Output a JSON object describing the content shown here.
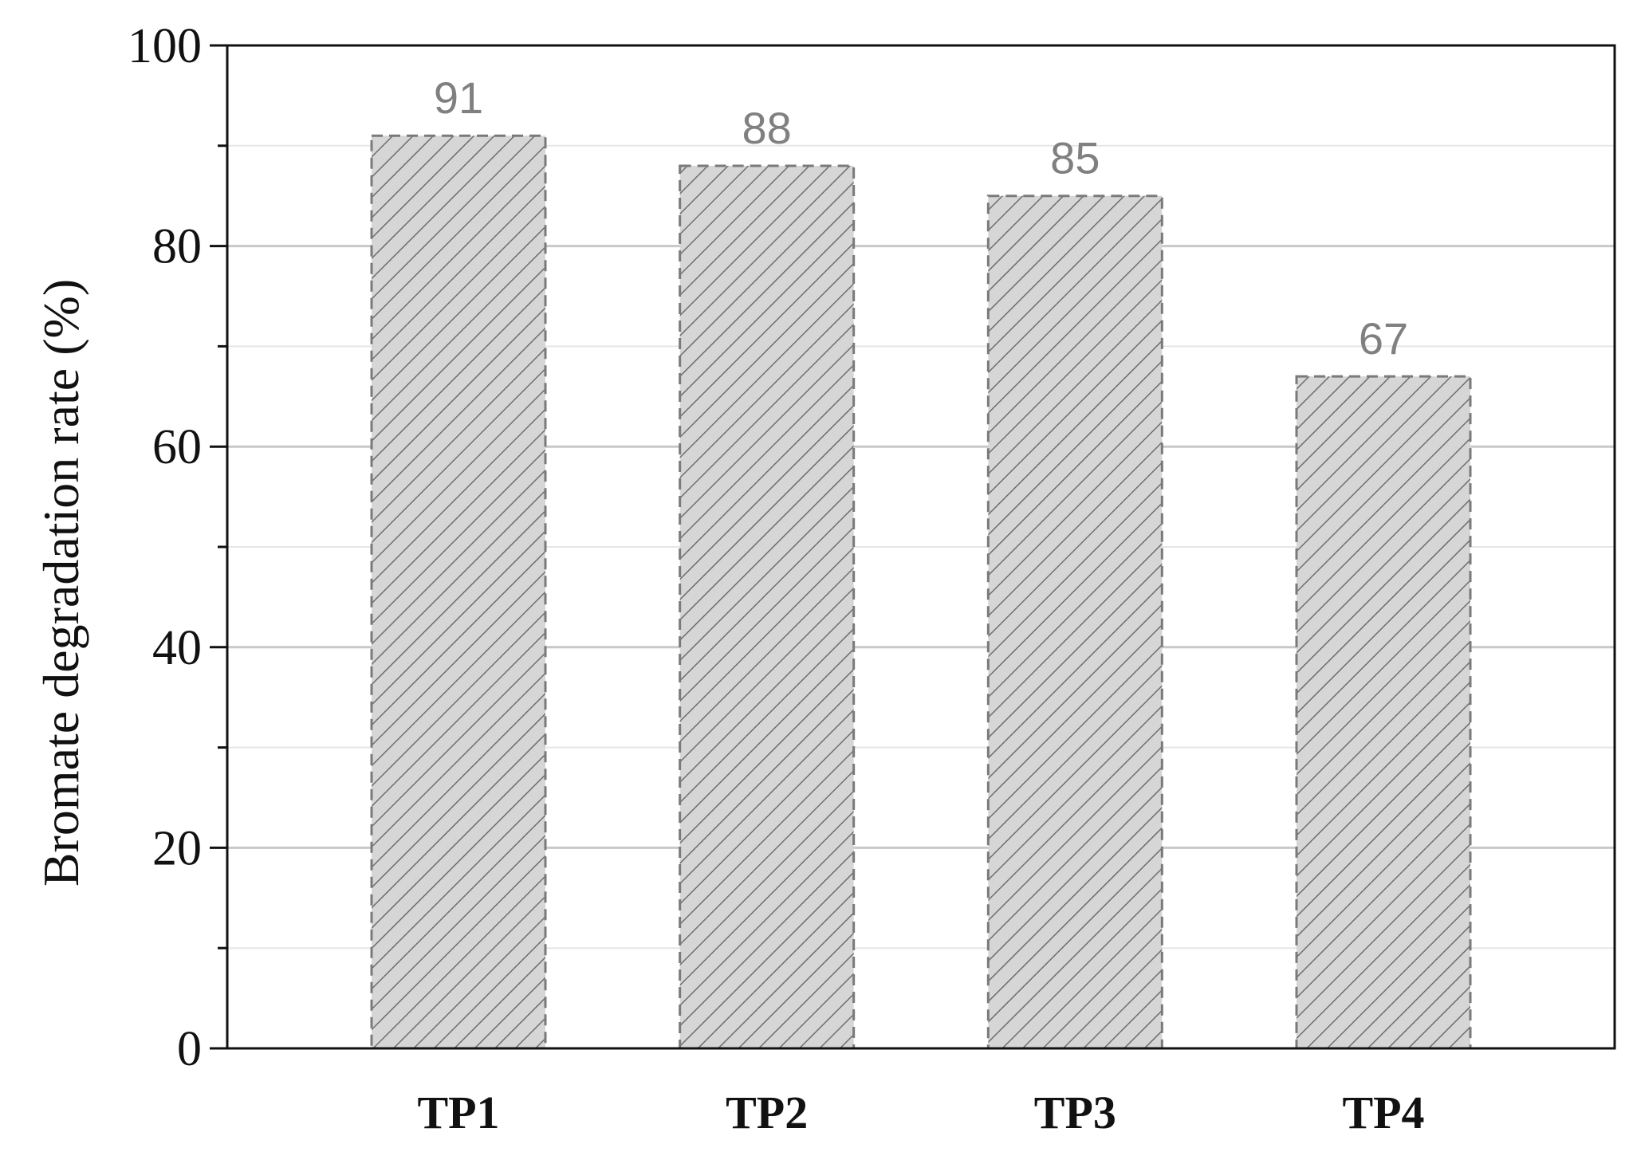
{
  "chart_data": {
    "type": "bar",
    "categories": [
      "TP1",
      "TP2",
      "TP3",
      "TP4"
    ],
    "values": [
      91,
      88,
      85,
      67
    ],
    "data_labels": [
      "91",
      "88",
      "85",
      "67"
    ],
    "title": "",
    "xlabel": "",
    "ylabel": "Bromate degradation rate (%)",
    "ylim": [
      0,
      100
    ],
    "yticks": [
      0,
      20,
      40,
      60,
      80,
      100
    ],
    "ytick_labels": [
      "0",
      "20",
      "40",
      "60",
      "80",
      "100"
    ],
    "grid": true,
    "bar_fill": "#d6d6d6",
    "bar_hatch": "diagonal",
    "bar_edge": "#7a7a7a",
    "data_label_color": "#808080"
  }
}
